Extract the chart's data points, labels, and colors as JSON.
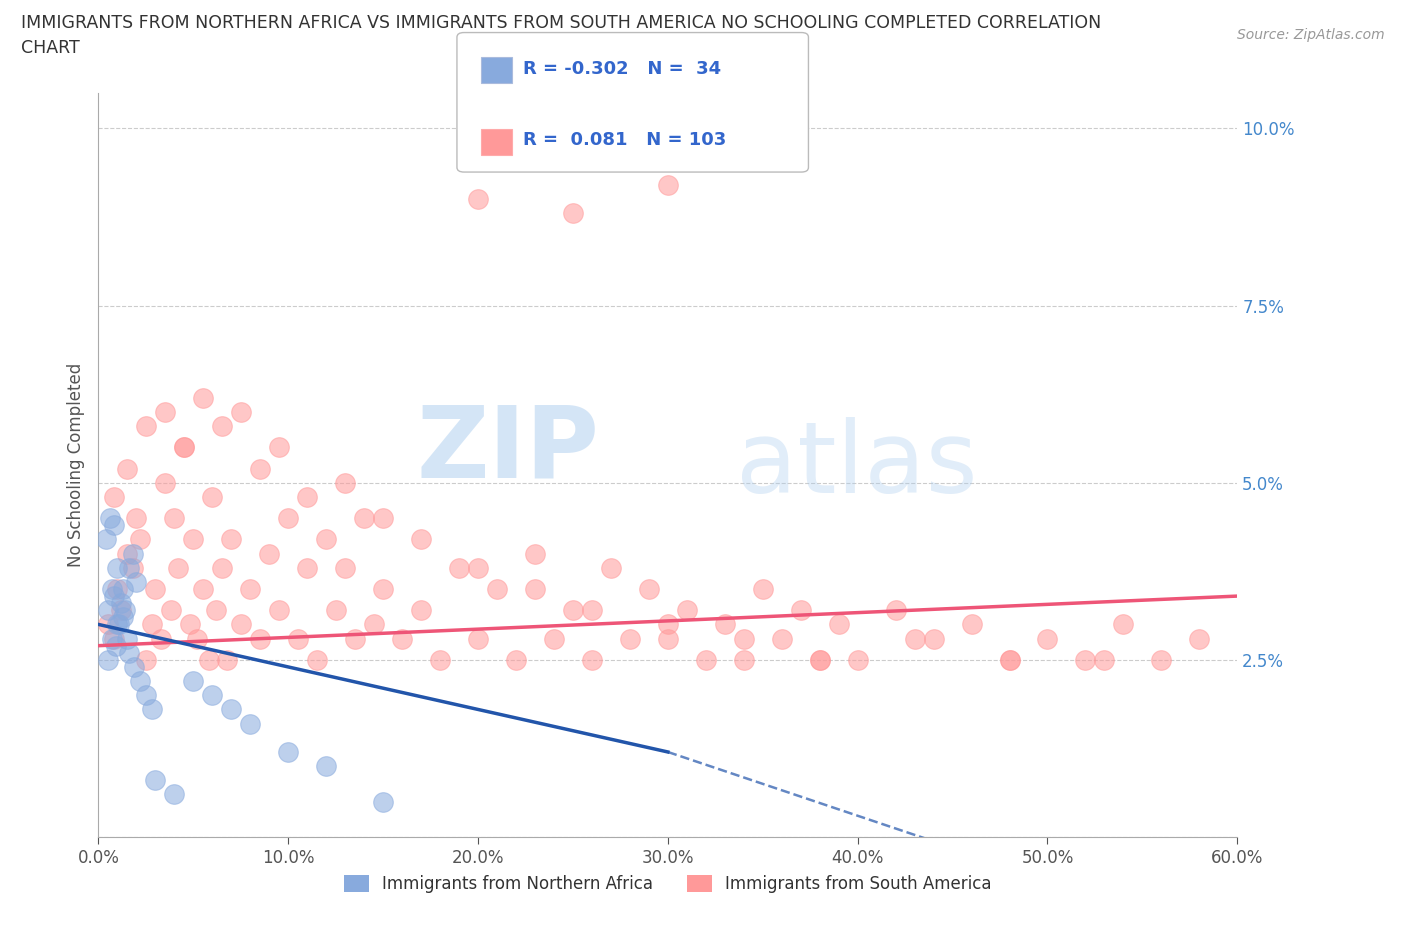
{
  "title_line1": "IMMIGRANTS FROM NORTHERN AFRICA VS IMMIGRANTS FROM SOUTH AMERICA NO SCHOOLING COMPLETED CORRELATION",
  "title_line2": "CHART",
  "source": "Source: ZipAtlas.com",
  "ylabel": "No Schooling Completed",
  "xlim": [
    0.0,
    0.6
  ],
  "ylim": [
    0.0,
    0.105
  ],
  "xticks": [
    0.0,
    0.1,
    0.2,
    0.3,
    0.4,
    0.5,
    0.6
  ],
  "xticklabels": [
    "0.0%",
    "10.0%",
    "20.0%",
    "30.0%",
    "40.0%",
    "50.0%",
    "60.0%"
  ],
  "yticks": [
    0.0,
    0.025,
    0.05,
    0.075,
    0.1
  ],
  "yticklabels": [
    "",
    "2.5%",
    "5.0%",
    "7.5%",
    "10.0%"
  ],
  "legend1_label": "Immigrants from Northern Africa",
  "legend2_label": "Immigrants from South America",
  "r_blue": -0.302,
  "n_blue": 34,
  "r_pink": 0.081,
  "n_pink": 103,
  "blue_color": "#88AADD",
  "pink_color": "#FF9999",
  "blue_line_color": "#2255AA",
  "pink_line_color": "#EE5577",
  "watermark_zip": "ZIP",
  "watermark_atlas": "atlas",
  "blue_scatter_x": [
    0.005,
    0.007,
    0.008,
    0.01,
    0.012,
    0.013,
    0.015,
    0.016,
    0.018,
    0.02,
    0.005,
    0.007,
    0.009,
    0.011,
    0.014,
    0.016,
    0.019,
    0.022,
    0.025,
    0.028,
    0.004,
    0.006,
    0.008,
    0.01,
    0.013,
    0.05,
    0.06,
    0.07,
    0.08,
    0.1,
    0.03,
    0.04,
    0.12,
    0.15
  ],
  "blue_scatter_y": [
    0.032,
    0.035,
    0.034,
    0.03,
    0.033,
    0.031,
    0.028,
    0.038,
    0.04,
    0.036,
    0.025,
    0.028,
    0.027,
    0.03,
    0.032,
    0.026,
    0.024,
    0.022,
    0.02,
    0.018,
    0.042,
    0.045,
    0.044,
    0.038,
    0.035,
    0.022,
    0.02,
    0.018,
    0.016,
    0.012,
    0.008,
    0.006,
    0.01,
    0.005
  ],
  "pink_scatter_x": [
    0.005,
    0.008,
    0.01,
    0.012,
    0.015,
    0.018,
    0.02,
    0.022,
    0.025,
    0.028,
    0.03,
    0.033,
    0.035,
    0.038,
    0.04,
    0.042,
    0.045,
    0.048,
    0.05,
    0.052,
    0.055,
    0.058,
    0.06,
    0.062,
    0.065,
    0.068,
    0.07,
    0.075,
    0.08,
    0.085,
    0.09,
    0.095,
    0.1,
    0.105,
    0.11,
    0.115,
    0.12,
    0.125,
    0.13,
    0.135,
    0.14,
    0.145,
    0.15,
    0.16,
    0.17,
    0.18,
    0.19,
    0.2,
    0.21,
    0.22,
    0.23,
    0.24,
    0.25,
    0.26,
    0.27,
    0.28,
    0.29,
    0.3,
    0.31,
    0.32,
    0.33,
    0.34,
    0.35,
    0.36,
    0.37,
    0.38,
    0.39,
    0.4,
    0.42,
    0.44,
    0.46,
    0.48,
    0.5,
    0.52,
    0.54,
    0.56,
    0.58,
    0.008,
    0.015,
    0.025,
    0.035,
    0.045,
    0.055,
    0.065,
    0.075,
    0.085,
    0.095,
    0.11,
    0.13,
    0.15,
    0.17,
    0.2,
    0.23,
    0.26,
    0.3,
    0.34,
    0.38,
    0.43,
    0.48,
    0.53,
    0.2,
    0.25,
    0.3
  ],
  "pink_scatter_y": [
    0.03,
    0.028,
    0.035,
    0.032,
    0.04,
    0.038,
    0.045,
    0.042,
    0.025,
    0.03,
    0.035,
    0.028,
    0.05,
    0.032,
    0.045,
    0.038,
    0.055,
    0.03,
    0.042,
    0.028,
    0.035,
    0.025,
    0.048,
    0.032,
    0.038,
    0.025,
    0.042,
    0.03,
    0.035,
    0.028,
    0.04,
    0.032,
    0.045,
    0.028,
    0.038,
    0.025,
    0.042,
    0.032,
    0.038,
    0.028,
    0.045,
    0.03,
    0.035,
    0.028,
    0.032,
    0.025,
    0.038,
    0.028,
    0.035,
    0.025,
    0.04,
    0.028,
    0.032,
    0.025,
    0.038,
    0.028,
    0.035,
    0.028,
    0.032,
    0.025,
    0.03,
    0.025,
    0.035,
    0.028,
    0.032,
    0.025,
    0.03,
    0.025,
    0.032,
    0.028,
    0.03,
    0.025,
    0.028,
    0.025,
    0.03,
    0.025,
    0.028,
    0.048,
    0.052,
    0.058,
    0.06,
    0.055,
    0.062,
    0.058,
    0.06,
    0.052,
    0.055,
    0.048,
    0.05,
    0.045,
    0.042,
    0.038,
    0.035,
    0.032,
    0.03,
    0.028,
    0.025,
    0.028,
    0.025,
    0.025,
    0.09,
    0.088,
    0.092
  ]
}
